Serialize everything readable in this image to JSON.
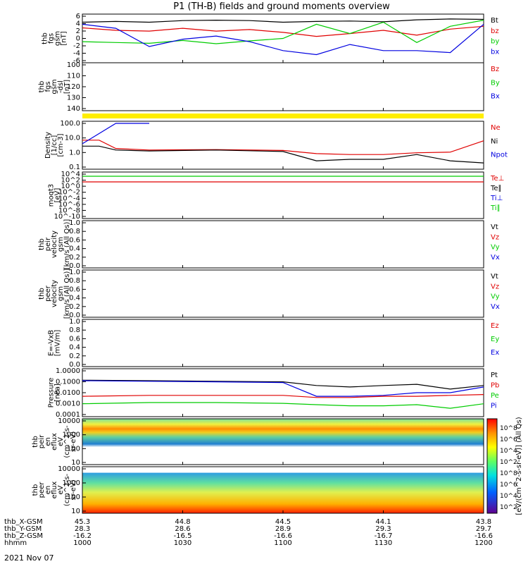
{
  "chart_data": {
    "type": "line",
    "title": "P1 (TH-B) fields and ground moments overview",
    "date_label": "2021 Nov 07",
    "panels": [
      {
        "id": "fgs",
        "ylabel": [
          "thb",
          "fgs",
          "gsm",
          "[nT]"
        ],
        "ylim": [
          -6,
          6
        ],
        "log": false,
        "ticks": [
          "6",
          "4",
          "2",
          "0",
          "-2",
          "-4",
          "-6"
        ],
        "legend": [
          {
            "name": "Bt",
            "color": "#000000"
          },
          {
            "name": "bz",
            "color": "#e00000"
          },
          {
            "name": "by",
            "color": "#00cc00"
          },
          {
            "name": "bx",
            "color": "#0000e0"
          }
        ]
      },
      {
        "id": "fgs_dsl",
        "ylabel": [
          "thb",
          "fgs",
          "gsm",
          "-dsl",
          "[nT]"
        ],
        "ylim": [
          100,
          145
        ],
        "log": false,
        "ticks": [
          "100",
          "110",
          "120",
          "130",
          "140"
        ],
        "legend": [
          {
            "name": "Bz",
            "color": "#e00000"
          },
          {
            "name": "By",
            "color": "#00cc00"
          },
          {
            "name": "Bx",
            "color": "#0000e0"
          }
        ]
      },
      {
        "id": "density",
        "ylabel": [
          "Density",
          "[1/cc]",
          "[cm-3]"
        ],
        "ylim": [
          0.03,
          300
        ],
        "log": true,
        "ticks": [
          "100.0",
          "10.0",
          "1.0",
          "0.1"
        ],
        "legend": [
          {
            "name": "Ne",
            "color": "#e00000"
          },
          {
            "name": "Ni",
            "color": "#000000"
          },
          {
            "name": "Npot",
            "color": "#0000e0"
          }
        ]
      },
      {
        "id": "temp",
        "ylabel": [
          "moqt3",
          "[eV]"
        ],
        "ylim": [
          1e-10,
          10000.0
        ],
        "log": true,
        "ticks": [
          "10^4",
          "10^2",
          "10^0",
          "10^-2",
          "10^-4",
          "10^-6",
          "10^-8",
          "10^-10"
        ],
        "legend": [
          {
            "name": "Te⊥",
            "color": "#e00000"
          },
          {
            "name": "Te∥",
            "color": "#000000"
          },
          {
            "name": "Ti⊥",
            "color": "#0000e0"
          },
          {
            "name": "Ti∥",
            "color": "#00cc00"
          }
        ]
      },
      {
        "id": "peir_vel",
        "ylabel": [
          "thb",
          "peir",
          "velocity",
          "gsm",
          "[km/s (All Qs)]"
        ],
        "ylim": [
          0,
          1
        ],
        "log": false,
        "ticks": [
          "1.0",
          "0.8",
          "0.6",
          "0.4",
          "0.2",
          "0.0"
        ],
        "legend": [
          {
            "name": "Vt",
            "color": "#000000"
          },
          {
            "name": "Vz",
            "color": "#e00000"
          },
          {
            "name": "Vy",
            "color": "#00cc00"
          },
          {
            "name": "Vx",
            "color": "#0000e0"
          }
        ]
      },
      {
        "id": "peer_vel",
        "ylabel": [
          "thb",
          "peer",
          "velocity",
          "gsm",
          "[km/s (All Qs)]"
        ],
        "ylim": [
          0,
          1
        ],
        "log": false,
        "ticks": [
          "1.0",
          "0.8",
          "0.6",
          "0.4",
          "0.2",
          "0.0"
        ],
        "legend": [
          {
            "name": "Vt",
            "color": "#000000"
          },
          {
            "name": "Vz",
            "color": "#e00000"
          },
          {
            "name": "Vy",
            "color": "#00cc00"
          },
          {
            "name": "Vx",
            "color": "#0000e0"
          }
        ]
      },
      {
        "id": "efield",
        "ylabel": [
          "E=-VxB",
          "[mV/m]"
        ],
        "ylim": [
          0,
          1
        ],
        "log": false,
        "ticks": [
          "1.0",
          "0.8",
          "0.6",
          "0.4",
          "0.2",
          "0.0"
        ],
        "legend": [
          {
            "name": "Ez",
            "color": "#e00000"
          },
          {
            "name": "Ey",
            "color": "#00cc00"
          },
          {
            "name": "Ex",
            "color": "#0000e0"
          }
        ]
      },
      {
        "id": "pressure",
        "ylabel": [
          "Pressure",
          "[nPa]"
        ],
        "ylim": [
          0.0001,
          1
        ],
        "log": true,
        "ticks": [
          "1.0000",
          "0.1000",
          "0.0100",
          "0.0010",
          "0.0001"
        ],
        "legend": [
          {
            "name": "Pt",
            "color": "#000000"
          },
          {
            "name": "Pb",
            "color": "#e00000"
          },
          {
            "name": "Pe",
            "color": "#00cc00"
          },
          {
            "name": "Pi",
            "color": "#0000e0"
          }
        ]
      },
      {
        "id": "peir_spec",
        "ylabel": [
          "thb",
          "peir",
          "en",
          "eflux",
          "eV",
          "(cm^2-s-",
          "sr-eV)"
        ],
        "ylim": [
          5,
          20000
        ],
        "log": true,
        "ticks": [
          "10000",
          "1000",
          "100",
          "10"
        ],
        "legend": []
      },
      {
        "id": "peer_spec",
        "ylabel": [
          "thb",
          "peer",
          "en",
          "eflux",
          "eV",
          "(cm^2-s-",
          "sr-eV)"
        ],
        "ylim": [
          5,
          20000
        ],
        "log": true,
        "ticks": [
          "10000",
          "1000",
          "100",
          "10"
        ],
        "legend": []
      }
    ],
    "colorbar": {
      "label": "[eV/(cm^2-s-sr-eV)] (All Qs)",
      "ticks": [
        "10^8",
        "10^6",
        "10^4",
        "10^2"
      ],
      "ticks_lower": [
        "10^8",
        "10^6",
        "10^4",
        "10^2"
      ]
    },
    "x_axis": {
      "rows": [
        {
          "name": "thb_X-GSM",
          "values": [
            "45.3",
            "44.8",
            "44.5",
            "44.1",
            "43.8"
          ]
        },
        {
          "name": "thb_Y-GSM",
          "values": [
            "28.3",
            "28.6",
            "28.9",
            "29.3",
            "29.7"
          ]
        },
        {
          "name": "thb_Z-GSM",
          "values": [
            "-16.2",
            "-16.5",
            "-16.6",
            "-16.7",
            "-16.6"
          ]
        },
        {
          "name": "hhmm",
          "values": [
            "1000",
            "1030",
            "1100",
            "1130",
            "1200"
          ]
        }
      ]
    },
    "series": [
      {
        "name": "Bt",
        "panel": "fgs",
        "color": "#000000",
        "x": [
          "10:00",
          "10:10",
          "10:20",
          "10:30",
          "10:40",
          "10:50",
          "11:00",
          "11:10",
          "11:20",
          "11:30",
          "11:40",
          "11:50",
          "12:00"
        ],
        "values": [
          4.0,
          4.2,
          4.0,
          4.4,
          4.5,
          4.4,
          4.0,
          4.2,
          4.3,
          4.1,
          4.6,
          4.8,
          4.7
        ]
      },
      {
        "name": "bz",
        "panel": "fgs",
        "color": "#e00000",
        "x": [
          "10:00",
          "10:10",
          "10:20",
          "10:30",
          "10:40",
          "10:50",
          "11:00",
          "11:10",
          "11:20",
          "11:30",
          "11:40",
          "11:50",
          "12:00"
        ],
        "values": [
          2.6,
          2.0,
          1.8,
          2.5,
          1.8,
          2.2,
          1.5,
          0.5,
          1.2,
          2.0,
          0.8,
          2.3,
          3.0
        ]
      },
      {
        "name": "by",
        "panel": "fgs",
        "color": "#00cc00",
        "x": [
          "10:00",
          "10:10",
          "10:20",
          "10:30",
          "10:40",
          "10:50",
          "11:00",
          "11:10",
          "11:20",
          "11:30",
          "11:40",
          "11:50",
          "12:00"
        ],
        "values": [
          -0.8,
          -1.0,
          -1.2,
          -0.5,
          -1.3,
          -0.6,
          0.0,
          3.5,
          1.2,
          4.0,
          -1.0,
          3.0,
          4.5
        ]
      },
      {
        "name": "bx",
        "panel": "fgs",
        "color": "#0000e0",
        "x": [
          "10:00",
          "10:10",
          "10:20",
          "10:30",
          "10:40",
          "10:50",
          "11:00",
          "11:10",
          "11:20",
          "11:30",
          "11:40",
          "11:50",
          "12:00"
        ],
        "values": [
          3.5,
          2.5,
          -2.0,
          -0.2,
          0.6,
          -0.8,
          -3.0,
          -4.0,
          -1.5,
          -3.0,
          -3.0,
          -3.5,
          3.5
        ]
      },
      {
        "name": "Ne",
        "panel": "density",
        "color": "#e00000",
        "x": [
          "10:00",
          "10:05",
          "10:10",
          "10:20",
          "10:40",
          "11:00",
          "11:10",
          "11:20",
          "11:30",
          "11:40",
          "11:50",
          "12:00"
        ],
        "values": [
          8,
          8,
          1.6,
          1.2,
          1.3,
          1.1,
          0.6,
          0.5,
          0.5,
          0.7,
          0.8,
          7
        ]
      },
      {
        "name": "Ni",
        "panel": "density",
        "color": "#000000",
        "x": [
          "10:00",
          "10:05",
          "10:10",
          "10:20",
          "10:40",
          "11:00",
          "11:10",
          "11:20",
          "11:30",
          "11:40",
          "11:50",
          "12:00"
        ],
        "values": [
          2.5,
          2.5,
          1.2,
          1.0,
          1.2,
          0.9,
          0.15,
          0.2,
          0.2,
          0.5,
          0.15,
          0.1
        ]
      },
      {
        "name": "Npot",
        "panel": "density",
        "color": "#0000e0",
        "x": [
          "10:00",
          "10:10",
          "10:20"
        ],
        "values": [
          4,
          200,
          200
        ]
      },
      {
        "name": "Pt",
        "panel": "pressure",
        "color": "#000000",
        "x": [
          "10:00",
          "10:20",
          "10:40",
          "11:00",
          "11:10",
          "11:20",
          "11:30",
          "11:40",
          "11:50",
          "12:00"
        ],
        "values": [
          0.11,
          0.1,
          0.09,
          0.08,
          0.04,
          0.03,
          0.04,
          0.05,
          0.02,
          0.04
        ]
      },
      {
        "name": "Pb",
        "panel": "pressure",
        "color": "#e00000",
        "x": [
          "10:00",
          "10:20",
          "10:40",
          "11:00",
          "11:10",
          "11:20",
          "11:30",
          "11:40",
          "11:50",
          "12:00"
        ],
        "values": [
          0.005,
          0.006,
          0.006,
          0.006,
          0.004,
          0.004,
          0.005,
          0.005,
          0.006,
          0.007
        ]
      },
      {
        "name": "Pe",
        "panel": "pressure",
        "color": "#00cc00",
        "x": [
          "10:00",
          "10:20",
          "10:40",
          "11:00",
          "11:10",
          "11:20",
          "11:30",
          "11:40",
          "11:50",
          "12:00"
        ],
        "values": [
          0.0012,
          0.0015,
          0.0015,
          0.0013,
          0.001,
          0.0008,
          0.0008,
          0.001,
          0.0005,
          0.0012
        ]
      },
      {
        "name": "Pi",
        "panel": "pressure",
        "color": "#0000e0",
        "x": [
          "10:00",
          "10:20",
          "10:40",
          "11:00",
          "11:10",
          "11:20",
          "11:30",
          "11:40",
          "11:50",
          "12:00"
        ],
        "values": [
          0.1,
          0.09,
          0.08,
          0.07,
          0.005,
          0.005,
          0.006,
          0.01,
          0.01,
          0.03
        ]
      }
    ]
  }
}
